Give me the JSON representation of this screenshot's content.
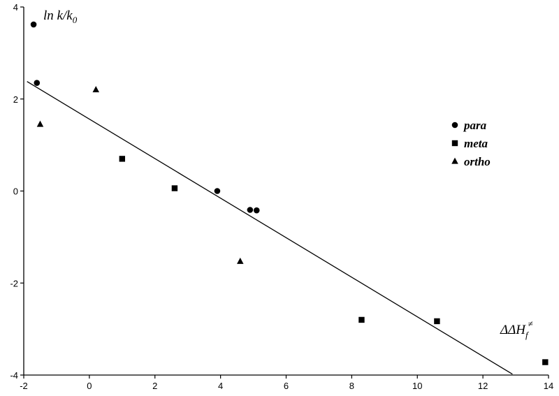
{
  "chart_data": {
    "type": "scatter",
    "title": "",
    "ylabel_main": "ln k/k",
    "ylabel_sub": "0",
    "xlabel_main": "ΔΔH",
    "xlabel_sub": "f",
    "xlabel_sup": "≠",
    "xlim": [
      -2,
      14
    ],
    "ylim": [
      -4,
      4
    ],
    "x_ticks": [
      "-2",
      "0",
      "2",
      "4",
      "6",
      "8",
      "10",
      "12",
      "14"
    ],
    "y_ticks": [
      "4",
      "2",
      "0",
      "-2",
      "-4"
    ],
    "legend_position": "right",
    "series": [
      {
        "name": "para",
        "marker": "circle",
        "points": [
          {
            "x": -1.7,
            "y": 3.62
          },
          {
            "x": -1.6,
            "y": 2.35
          },
          {
            "x": 3.9,
            "y": 0.0
          },
          {
            "x": 4.9,
            "y": -0.41
          },
          {
            "x": 5.1,
            "y": -0.42
          }
        ]
      },
      {
        "name": "meta",
        "marker": "square",
        "points": [
          {
            "x": 1.0,
            "y": 0.7
          },
          {
            "x": 2.6,
            "y": 0.06
          },
          {
            "x": 8.3,
            "y": -2.8
          },
          {
            "x": 10.6,
            "y": -2.83
          },
          {
            "x": 13.9,
            "y": -3.72
          }
        ]
      },
      {
        "name": "ortho",
        "marker": "triangle",
        "points": [
          {
            "x": -1.5,
            "y": 1.45
          },
          {
            "x": 0.2,
            "y": 2.2
          },
          {
            "x": 4.6,
            "y": -1.53
          }
        ]
      }
    ],
    "fit_line": {
      "x1": -1.9,
      "y1": 2.38,
      "x2": 12.9,
      "y2": -3.98
    }
  }
}
